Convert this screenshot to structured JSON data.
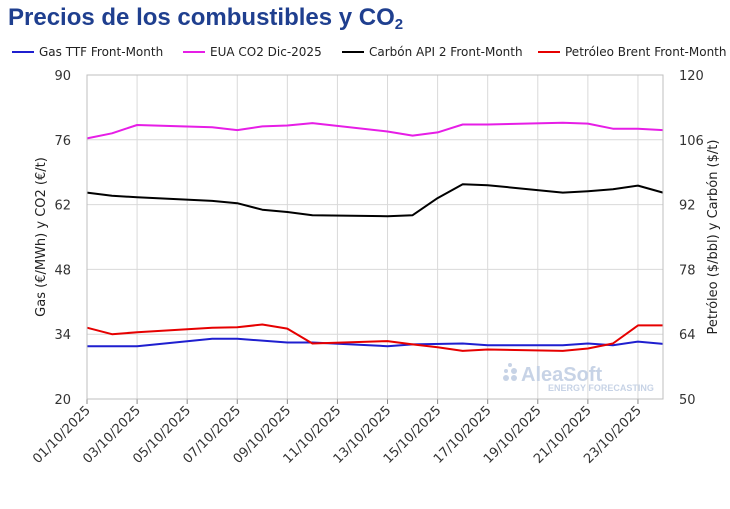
{
  "title": {
    "main": "Precios de los combustibles y CO",
    "sub": "2"
  },
  "watermark": {
    "brand": "AleaSoft",
    "tagline": "ENERGY FORECASTING"
  },
  "chart_data": {
    "type": "line",
    "x": [
      "01/10/2025",
      "02/10/2025",
      "03/10/2025",
      "06/10/2025",
      "07/10/2025",
      "08/10/2025",
      "09/10/2025",
      "10/10/2025",
      "13/10/2025",
      "14/10/2025",
      "15/10/2025",
      "16/10/2025",
      "17/10/2025",
      "20/10/2025",
      "21/10/2025",
      "22/10/2025",
      "23/10/2025",
      "24/10/2025"
    ],
    "xticks": [
      "01/10/2025",
      "03/10/2025",
      "05/10/2025",
      "07/10/2025",
      "09/10/2025",
      "11/10/2025",
      "13/10/2025",
      "15/10/2025",
      "17/10/2025",
      "19/10/2025",
      "21/10/2025",
      "23/10/2025"
    ],
    "ylabel_left": "Gas (€/MWh) y CO2 (€/t)",
    "ylabel_right": "Petróleo ($/bbl) y Carbón ($/t)",
    "ylim_left": [
      20,
      90
    ],
    "ylim_right": [
      50,
      120
    ],
    "yticks_left": [
      "20",
      "34",
      "48",
      "62",
      "76",
      "90"
    ],
    "yticks_right": [
      "50",
      "64",
      "78",
      "92",
      "106",
      "120"
    ],
    "grid": true,
    "legend": "top",
    "series": [
      {
        "name": "Gas TTF Front-Month",
        "axis": "left",
        "color": "#1f1fcf",
        "x": [
          "01/10/2025",
          "03/10/2025",
          "06/10/2025",
          "07/10/2025",
          "09/10/2025",
          "10/10/2025",
          "13/10/2025",
          "14/10/2025",
          "16/10/2025",
          "17/10/2025",
          "20/10/2025",
          "21/10/2025",
          "22/10/2025",
          "23/10/2025",
          "24/10/2025"
        ],
        "values": [
          31.4,
          31.4,
          33.0,
          33.0,
          32.2,
          32.2,
          31.4,
          31.8,
          32.0,
          31.6,
          31.6,
          32.0,
          31.6,
          32.4,
          31.9
        ]
      },
      {
        "name": "EUA CO2 Dic-2025",
        "axis": "left",
        "color": "#e61ee6",
        "x": [
          "01/10/2025",
          "02/10/2025",
          "03/10/2025",
          "06/10/2025",
          "07/10/2025",
          "08/10/2025",
          "09/10/2025",
          "10/10/2025",
          "13/10/2025",
          "14/10/2025",
          "15/10/2025",
          "16/10/2025",
          "17/10/2025",
          "20/10/2025",
          "21/10/2025",
          "22/10/2025",
          "23/10/2025",
          "24/10/2025"
        ],
        "values": [
          76.3,
          77.4,
          79.2,
          78.7,
          78.1,
          78.9,
          79.1,
          79.6,
          77.8,
          76.9,
          77.6,
          79.3,
          79.3,
          79.7,
          79.5,
          78.4,
          78.4,
          78.1
        ]
      },
      {
        "name": "Carbón API 2 Front-Month",
        "axis": "right",
        "color": "#000000",
        "x": [
          "01/10/2025",
          "02/10/2025",
          "03/10/2025",
          "06/10/2025",
          "07/10/2025",
          "08/10/2025",
          "09/10/2025",
          "10/10/2025",
          "13/10/2025",
          "14/10/2025",
          "15/10/2025",
          "16/10/2025",
          "17/10/2025",
          "20/10/2025",
          "21/10/2025",
          "22/10/2025",
          "23/10/2025",
          "24/10/2025"
        ],
        "values": [
          94.6,
          93.9,
          93.6,
          92.8,
          92.3,
          90.9,
          90.4,
          89.7,
          89.5,
          89.7,
          93.4,
          96.4,
          96.2,
          94.6,
          94.9,
          95.3,
          96.1,
          94.6
        ]
      },
      {
        "name": "Petróleo Brent Front-Month",
        "axis": "right",
        "color": "#e60000",
        "x": [
          "01/10/2025",
          "02/10/2025",
          "03/10/2025",
          "06/10/2025",
          "07/10/2025",
          "08/10/2025",
          "09/10/2025",
          "10/10/2025",
          "13/10/2025",
          "14/10/2025",
          "15/10/2025",
          "16/10/2025",
          "17/10/2025",
          "20/10/2025",
          "21/10/2025",
          "22/10/2025",
          "23/10/2025",
          "24/10/2025"
        ],
        "values": [
          65.4,
          64.0,
          64.4,
          65.4,
          65.5,
          66.1,
          65.2,
          62.0,
          62.5,
          61.8,
          61.2,
          60.4,
          60.7,
          60.4,
          60.9,
          62.0,
          65.9,
          65.9
        ]
      }
    ]
  }
}
